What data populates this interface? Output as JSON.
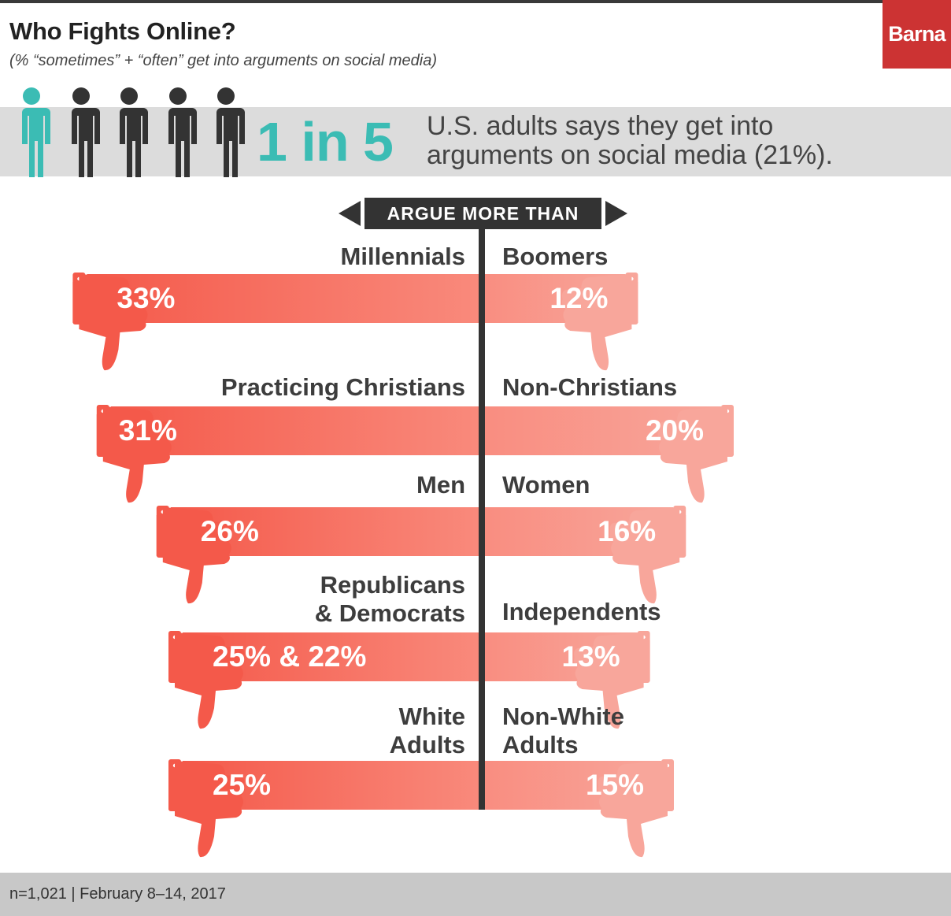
{
  "header": {
    "title": "Who Fights Online?",
    "subtitle": "(% “sometimes” + “often” get into arguments on social media)",
    "logo": "Barna"
  },
  "banner": {
    "big_stat": "1 in 5",
    "text_line1": "U.S. adults says they get into",
    "text_line2": "arguments on social media (21%).",
    "icons": [
      "person-icon-highlighted",
      "person-icon",
      "person-icon",
      "person-icon",
      "person-icon"
    ],
    "highlight_color": "#3bbcb4",
    "person_color": "#333333"
  },
  "chart_data": {
    "type": "bar",
    "header_label": "ARGUE MORE THAN",
    "pairs": [
      {
        "left_label": [
          "Millennials"
        ],
        "left_value_text": "33%",
        "left_value": 33,
        "right_label": [
          "Boomers"
        ],
        "right_value_text": "12%",
        "right_value": 12
      },
      {
        "left_label": [
          "Practicing Christians"
        ],
        "left_value_text": "31%",
        "left_value": 31,
        "right_label": [
          "Non-Christians"
        ],
        "right_value_text": "20%",
        "right_value": 20
      },
      {
        "left_label": [
          "Men"
        ],
        "left_value_text": "26%",
        "left_value": 26,
        "right_label": [
          "Women"
        ],
        "right_value_text": "16%",
        "right_value": 16
      },
      {
        "left_label": [
          "Republicans",
          "& Democrats"
        ],
        "left_value_text": "25% & 22%",
        "left_value": 25,
        "right_label": [
          "Independents"
        ],
        "right_value_text": "13%",
        "right_value": 13
      },
      {
        "left_label": [
          "White",
          "Adults"
        ],
        "left_value_text": "25%",
        "left_value": 25,
        "right_label": [
          "Non-White",
          "Adults"
        ],
        "right_value_text": "15%",
        "right_value": 15
      }
    ],
    "colors": {
      "left": "#f4594a",
      "right": "#f8a69b",
      "divider": "#333333"
    }
  },
  "footer": {
    "note": "n=1,021 | February 8–14, 2017"
  }
}
